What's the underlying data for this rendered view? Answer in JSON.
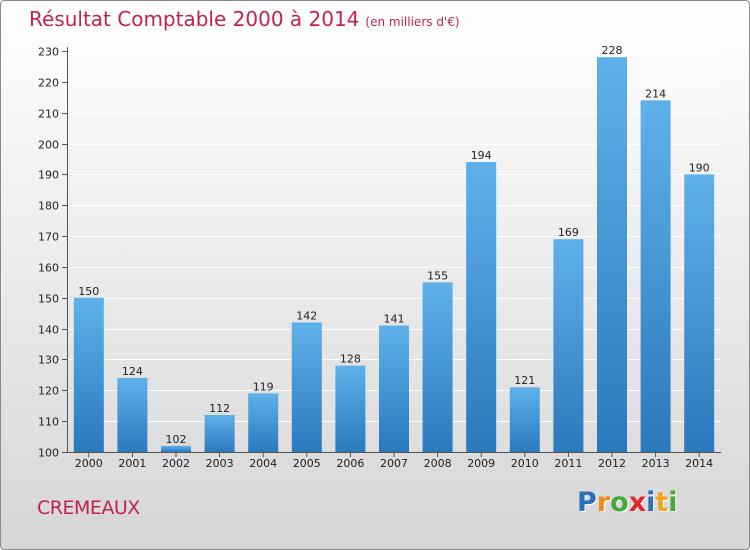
{
  "title": "Résultat Comptable 2000 à 2014",
  "subtitle": "(en milliers d'€)",
  "place": "CREMEAUX",
  "logo": {
    "text": "Proxiti",
    "letters": [
      {
        "ch": "P",
        "color": "#2e6fb8"
      },
      {
        "ch": "r",
        "color": "#f08a1c"
      },
      {
        "ch": "o",
        "color": "#49a83b"
      },
      {
        "ch": "x",
        "color": "#e2262a"
      },
      {
        "ch": "i",
        "color": "#2e6fb8"
      },
      {
        "ch": "t",
        "color": "#f0a51c"
      },
      {
        "ch": "i",
        "color": "#49a83b"
      }
    ]
  },
  "colors": {
    "title": "#c0244d",
    "bar_light": "#5fb1ea",
    "bar_dark": "#2a79bd"
  },
  "chart_data": {
    "type": "bar",
    "title": "Résultat Comptable 2000 à 2014",
    "subtitle": "(en milliers d'€)",
    "xlabel": "",
    "ylabel": "",
    "categories": [
      "2000",
      "2001",
      "2002",
      "2003",
      "2004",
      "2005",
      "2006",
      "2007",
      "2008",
      "2009",
      "2010",
      "2011",
      "2012",
      "2013",
      "2014"
    ],
    "values": [
      150,
      124,
      102,
      112,
      119,
      142,
      128,
      141,
      155,
      194,
      121,
      169,
      228,
      214,
      190
    ],
    "ylim": [
      100,
      230
    ],
    "yticks": [
      100,
      110,
      120,
      130,
      140,
      150,
      160,
      170,
      180,
      190,
      200,
      210,
      220,
      230
    ],
    "grid": true
  }
}
